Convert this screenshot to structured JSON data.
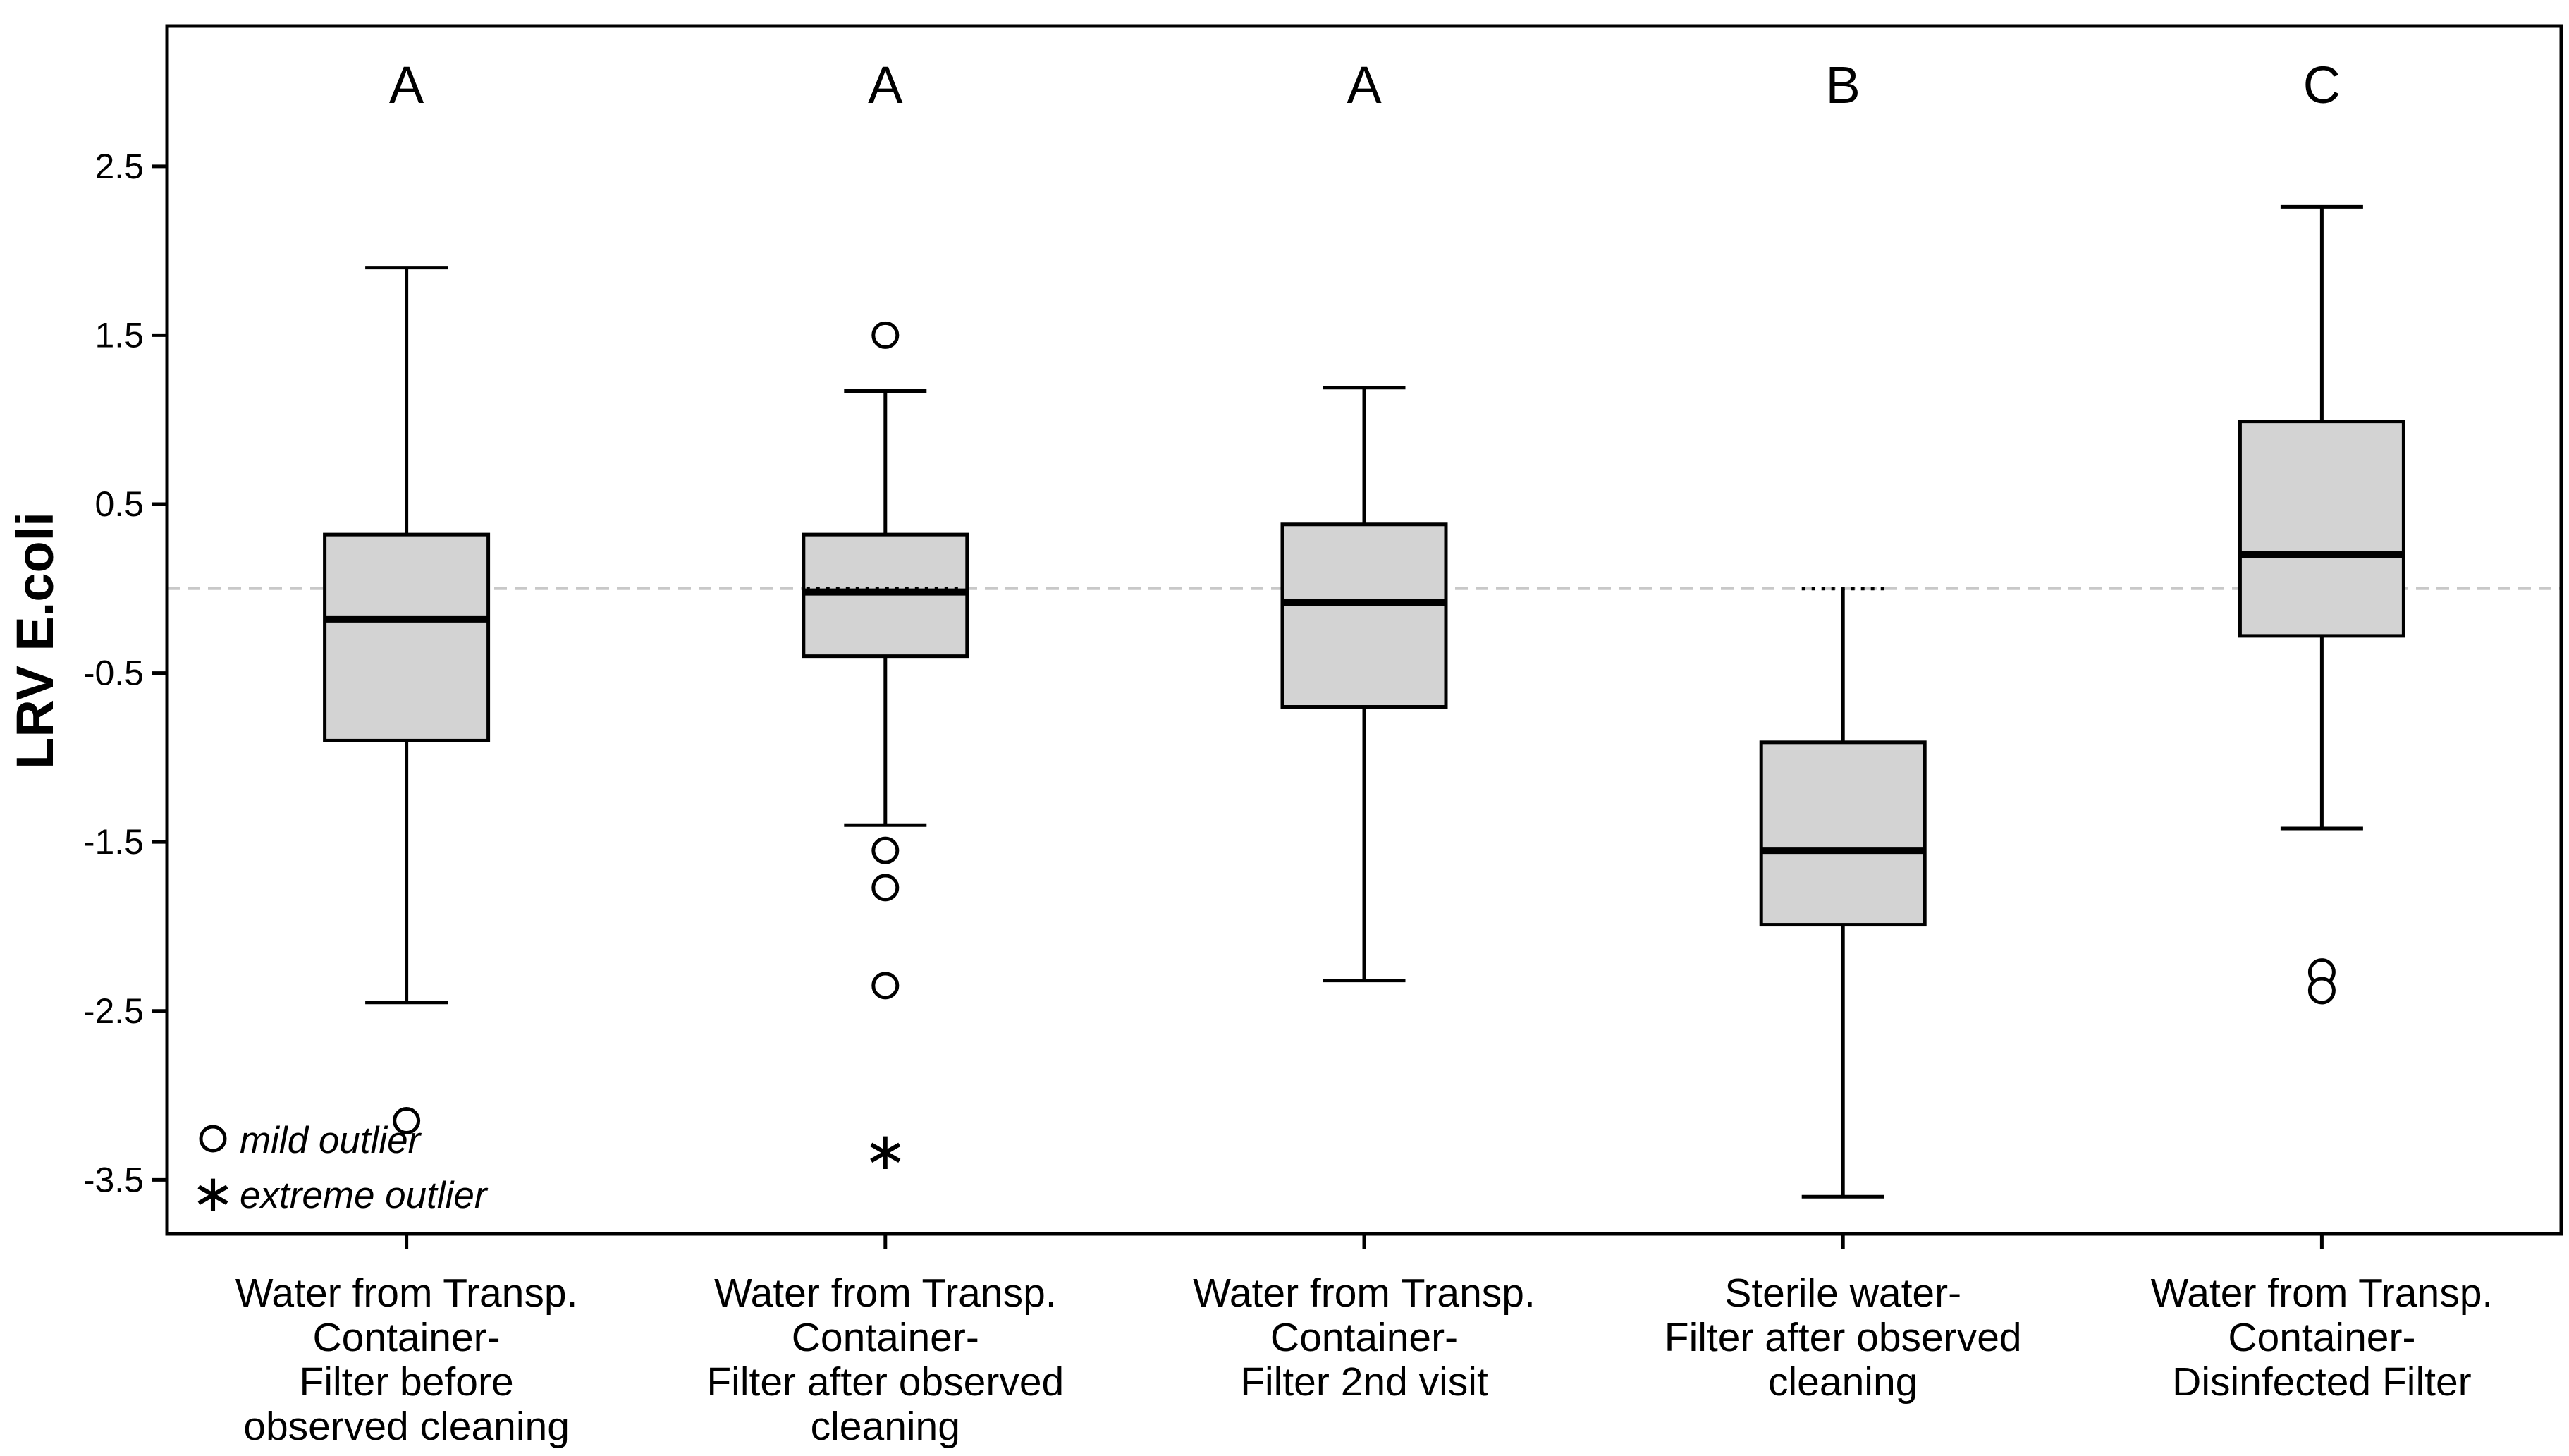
{
  "chart_data": {
    "type": "boxplot",
    "title": "",
    "xlabel": "",
    "ylabel": "LRV E.coli",
    "ylim": [
      -3.82,
      3.33
    ],
    "yticks": [
      2.5,
      1.5,
      0.5,
      -0.5,
      -1.5,
      -2.5,
      -3.5
    ],
    "ytick_labels": [
      "2.5",
      "1.5",
      "0.5",
      "-0.5",
      "-1.5",
      "-2.5",
      "-3.5"
    ],
    "reference_line": 0,
    "groups": [
      {
        "letter": "A",
        "label_lines": [
          "Water from Transp.",
          "Container-",
          "Filter before",
          "observed cleaning"
        ],
        "whisker_low": -2.45,
        "q1": -0.9,
        "median": -0.18,
        "q3": 0.32,
        "whisker_high": 1.9,
        "mild_outliers": [
          -3.15
        ],
        "extreme_outliers": []
      },
      {
        "letter": "A",
        "label_lines": [
          "Water from Transp.",
          "Container-",
          "Filter after observed",
          "cleaning"
        ],
        "whisker_low": -1.4,
        "q1": -0.4,
        "median": -0.02,
        "q3": 0.32,
        "whisker_high": 1.17,
        "mild_outliers": [
          1.5,
          -1.55,
          -1.77,
          -2.35
        ],
        "extreme_outliers": [
          -3.32
        ]
      },
      {
        "letter": "A",
        "label_lines": [
          "Water from Transp.",
          "Container-",
          "Filter 2nd visit"
        ],
        "whisker_low": -2.32,
        "q1": -0.7,
        "median": -0.08,
        "q3": 0.38,
        "whisker_high": 1.19,
        "mild_outliers": [],
        "extreme_outliers": []
      },
      {
        "letter": "B",
        "label_lines": [
          "Sterile water-",
          "Filter after observed",
          "cleaning"
        ],
        "whisker_low": -3.6,
        "q1": -1.99,
        "median": -1.55,
        "q3": -0.91,
        "whisker_high": 0.0,
        "mild_outliers": [],
        "extreme_outliers": []
      },
      {
        "letter": "C",
        "label_lines": [
          "Water from Transp.",
          "Container-",
          "Disinfected Filter"
        ],
        "whisker_low": -1.42,
        "q1": -0.28,
        "median": 0.2,
        "q3": 0.99,
        "whisker_high": 2.26,
        "mild_outliers": [
          -2.27,
          -2.38
        ],
        "extreme_outliers": []
      }
    ],
    "legend": {
      "mild_label": "mild outlier",
      "extreme_label": "extreme outlier",
      "placement": "bottom-left"
    }
  }
}
